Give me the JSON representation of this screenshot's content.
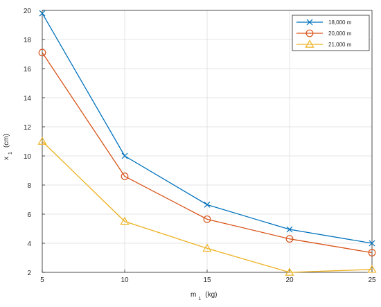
{
  "chart_data": {
    "type": "line",
    "title": "",
    "x": [
      5,
      10,
      15,
      20,
      25
    ],
    "xlim": [
      5,
      25
    ],
    "ylim": [
      2,
      20
    ],
    "xticks": [
      5,
      10,
      15,
      20,
      25
    ],
    "yticks": [
      2,
      4,
      6,
      8,
      10,
      12,
      14,
      16,
      18,
      20
    ],
    "xlabel": {
      "main": "m",
      "sub": "1",
      "unit": "(kg)"
    },
    "ylabel": {
      "main": "x",
      "sub": "1",
      "unit": "(cm)"
    },
    "grid": true,
    "legend_position": "top-right",
    "series": [
      {
        "name": "18,000 m",
        "marker": "x",
        "color": "#0072BD",
        "values": [
          19.8,
          10.0,
          6.65,
          4.95,
          4.0
        ]
      },
      {
        "name": "20,000 m",
        "marker": "o",
        "color": "#D95319",
        "values": [
          17.1,
          8.6,
          5.65,
          4.3,
          3.35
        ]
      },
      {
        "name": "21,000 m",
        "marker": "^",
        "color": "#EDB120",
        "values": [
          11.0,
          5.5,
          3.65,
          2.0,
          2.2
        ]
      }
    ]
  }
}
